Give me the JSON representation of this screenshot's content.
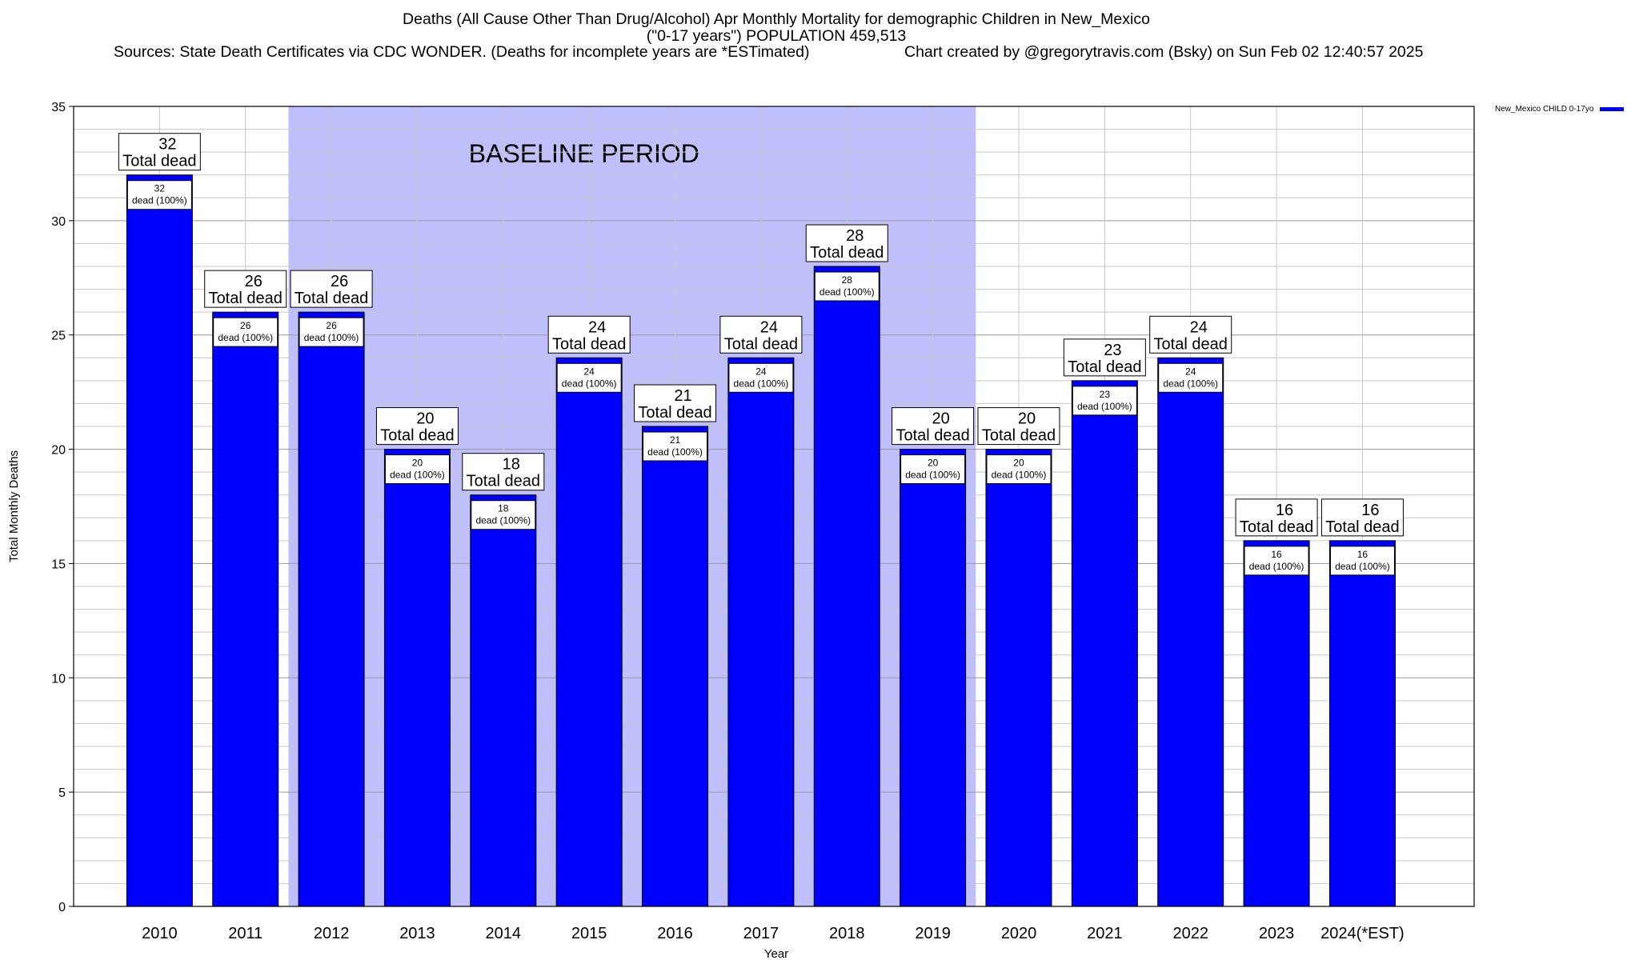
{
  "title": {
    "line1": "Deaths (All Cause Other Than Drug/Alcohol) Apr Monthly Mortality for demographic Children in New_Mexico",
    "line2": "(\"0-17 years\") POPULATION 459,513",
    "line3_sources": "Sources: State Death Certificates via CDC WONDER. (Deaths for incomplete years are *ESTimated)",
    "line3_credit": "Chart created by @gregorytravis.com (Bsky) on Sun Feb 02 12:40:57 2025"
  },
  "legend": {
    "label": "New_Mexico CHILD 0-17yo",
    "color": "#0000ff"
  },
  "chart_data": {
    "type": "bar",
    "xlabel": "Year",
    "ylabel": "Total Monthly Deaths",
    "ylim": [
      0,
      35
    ],
    "yticks": [
      0,
      5,
      10,
      15,
      20,
      25,
      30,
      35
    ],
    "grid": true,
    "categories": [
      "2010",
      "2011",
      "2012",
      "2013",
      "2014",
      "2015",
      "2016",
      "2017",
      "2018",
      "2019",
      "2020",
      "2021",
      "2022",
      "2023",
      "2024(*EST)"
    ],
    "series": [
      {
        "name": "New_Mexico CHILD 0-17yo",
        "color": "#0000ff",
        "values": [
          32,
          26,
          26,
          20,
          18,
          24,
          21,
          24,
          28,
          20,
          20,
          23,
          24,
          16,
          16
        ]
      }
    ],
    "total_label_text": "Total dead",
    "inner_label_suffix": "dead (100%)",
    "baseline": {
      "label": "BASELINE PERIOD",
      "start": "2012",
      "end": "2019",
      "color": "#bfbffb"
    }
  }
}
